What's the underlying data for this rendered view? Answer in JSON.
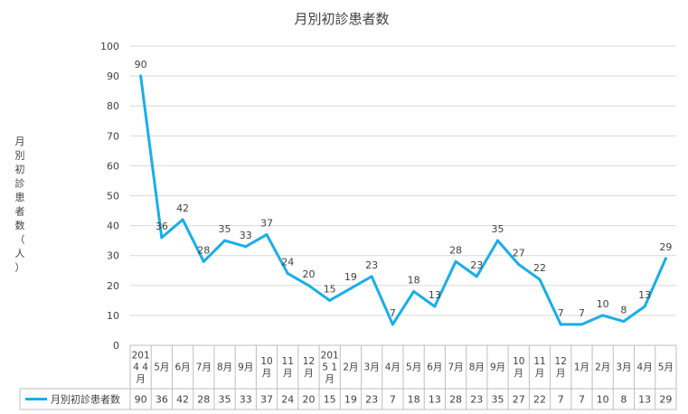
{
  "chart_data": {
    "type": "line",
    "title": "月別初診患者数",
    "ylabel": "月別初診患者数（人）",
    "xlabel": "",
    "ylim": [
      0,
      100
    ],
    "yticks": [
      0,
      10,
      20,
      30,
      40,
      50,
      60,
      70,
      80,
      90,
      100
    ],
    "grid": true,
    "legend_placement": "table-left",
    "categories": [
      [
        "201",
        "4 4",
        "月"
      ],
      [
        "5月"
      ],
      [
        "6月"
      ],
      [
        "7月"
      ],
      [
        "8月"
      ],
      [
        "9月"
      ],
      [
        "10",
        "月"
      ],
      [
        "11",
        "月"
      ],
      [
        "12",
        "月"
      ],
      [
        "201",
        "5 1",
        "月"
      ],
      [
        "2月"
      ],
      [
        "3月"
      ],
      [
        "4月"
      ],
      [
        "5月"
      ],
      [
        "6月"
      ],
      [
        "7月"
      ],
      [
        "8月"
      ],
      [
        "9月"
      ],
      [
        "10",
        "月"
      ],
      [
        "11",
        "月"
      ],
      [
        "12",
        "月"
      ],
      [
        "1月"
      ],
      [
        "2月"
      ],
      [
        "3月"
      ],
      [
        "4月"
      ],
      [
        "5月"
      ]
    ],
    "series": [
      {
        "name": "月別初診患者数",
        "color": "#18AEEA",
        "values": [
          90,
          36,
          42,
          28,
          35,
          33,
          37,
          24,
          20,
          15,
          19,
          23,
          7,
          18,
          13,
          28,
          23,
          35,
          27,
          22,
          7,
          7,
          10,
          8,
          13,
          29
        ]
      }
    ]
  }
}
